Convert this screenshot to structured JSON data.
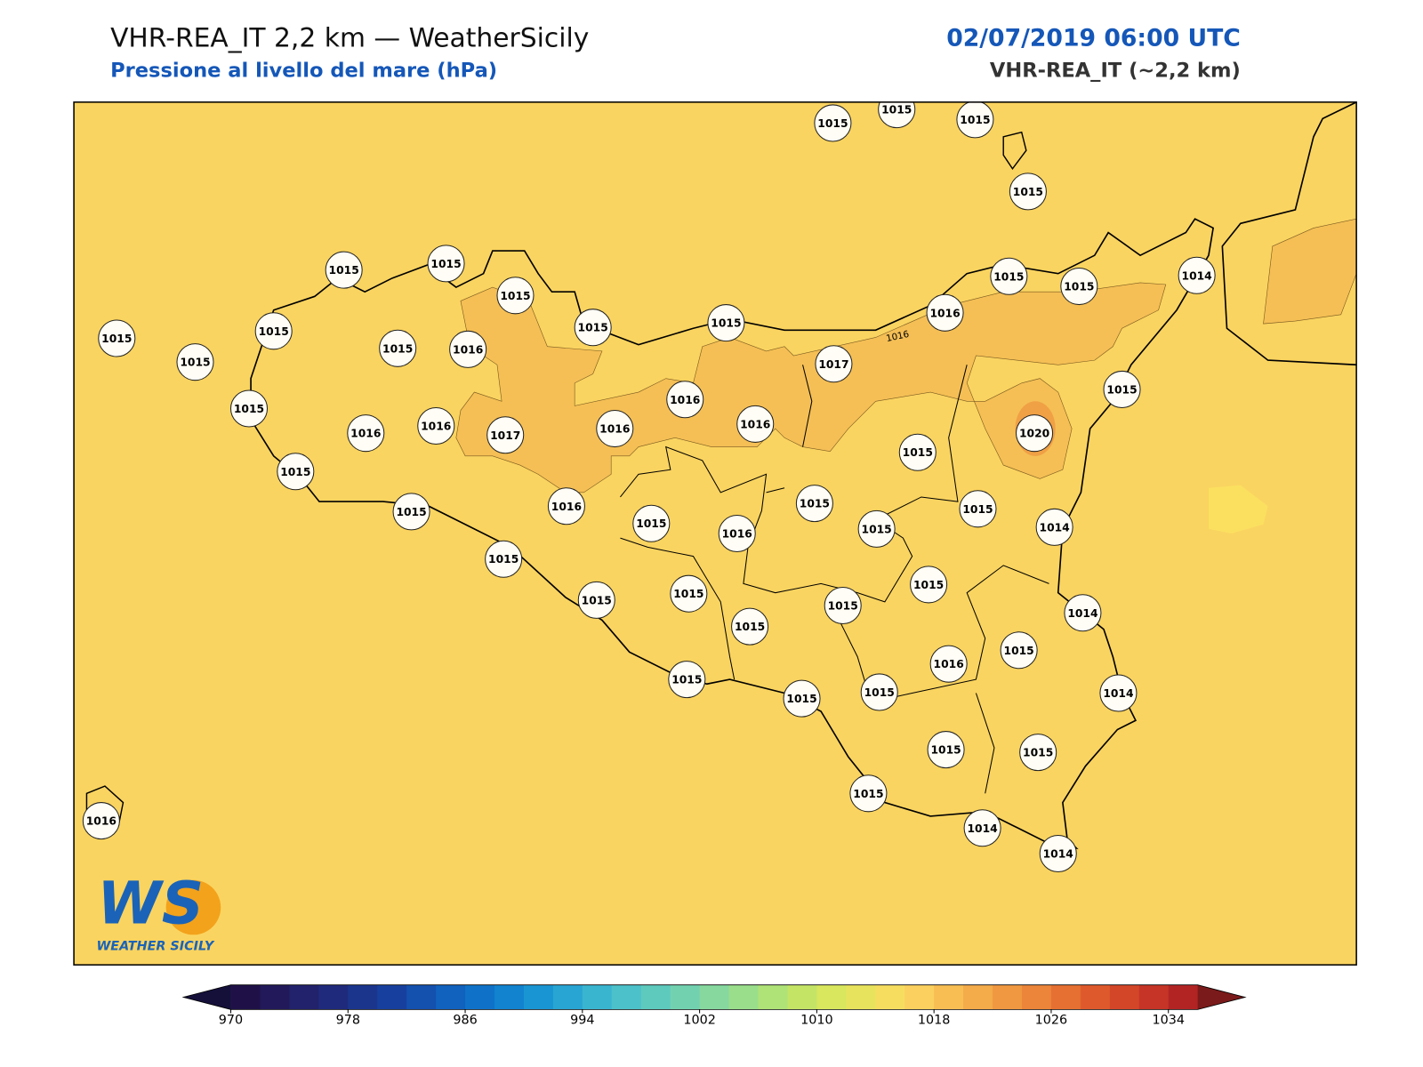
{
  "header": {
    "title": "VHR-REA_IT 2,2 km — WeatherSicily",
    "subtitle": "Pressione al livello del mare (hPa)",
    "date": "02/07/2019 06:00 UTC",
    "model": "VHR-REA_IT (~2,2 km)"
  },
  "map": {
    "stations": [
      1015,
      1015,
      1015,
      1015,
      1015,
      1015,
      1015,
      1014,
      1015,
      1015,
      1015,
      1015,
      1015,
      1016,
      1015,
      1015,
      1016,
      1015,
      1017,
      1015,
      1015,
      1016,
      1016,
      1017,
      1016,
      1016,
      1016,
      1020,
      1015,
      1015,
      1015,
      1016,
      1015,
      1015,
      1015,
      1014,
      1015,
      1016,
      1015,
      1015,
      1015,
      1015,
      1015,
      1015,
      1014,
      1015,
      1016,
      1014,
      1015,
      1015,
      1015,
      1015,
      1015,
      1015,
      1014,
      1014,
      1016
    ],
    "contour_labels": [
      1016
    ]
  },
  "logo": {
    "mark": "WS",
    "name": "WEATHER SICILY"
  },
  "colorbar": {
    "lim": [
      970,
      1036
    ],
    "ticks": [
      970,
      978,
      986,
      994,
      1002,
      1010,
      1018,
      1026,
      1034
    ],
    "colors": [
      "#1f1147",
      "#22195a",
      "#22216b",
      "#1f2a7c",
      "#1b358d",
      "#17409e",
      "#1450ae",
      "#1161be",
      "#0f72c8",
      "#1183cf",
      "#1a95d3",
      "#28a5d3",
      "#3ab5d0",
      "#4cc1c9",
      "#5ecabe",
      "#72d2b0",
      "#86d89f",
      "#9ade8c",
      "#afe277",
      "#c4e466",
      "#d8e75e",
      "#e8e35d",
      "#f6dd60",
      "#fbd05e",
      "#f8be54",
      "#f4ab4a",
      "#f09841",
      "#ec8539",
      "#e67031",
      "#de5a2c",
      "#d34628",
      "#c53426",
      "#b22424"
    ],
    "under": "#14103a",
    "over": "#7a1a1a"
  }
}
